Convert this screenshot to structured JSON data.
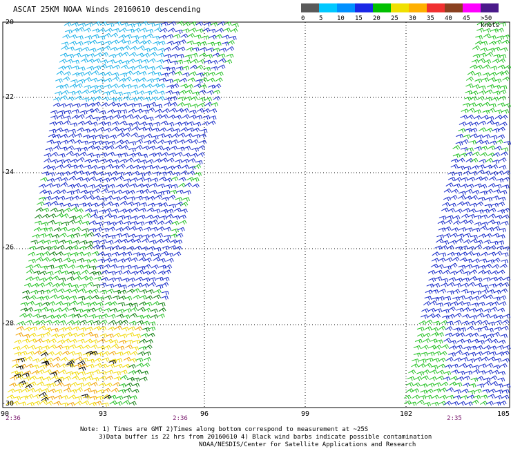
{
  "title": "ASCAT 25KM NOAA Winds 20160610 descending",
  "lat_labels": [
    "-20",
    "-22",
    "-24",
    "-26",
    "-28",
    "-30"
  ],
  "lon_labels": [
    "90",
    "93",
    "96",
    "99",
    "102",
    "105"
  ],
  "time_labels": [
    "2:36",
    "2:36",
    "2:35"
  ],
  "legend": {
    "labels": [
      "0",
      "5",
      "10",
      "15",
      "20",
      "25",
      "30",
      "35",
      "40",
      "45",
      ">50 knots"
    ],
    "colors": [
      "#5a5a5a",
      "#00c8ff",
      "#0090ff",
      "#1a28e6",
      "#00c000",
      "#f0e000",
      "#ffb000",
      "#f03030",
      "#8a4020",
      "#ff00ff",
      "#4a1a8a"
    ]
  },
  "notes": {
    "line1": "Note: 1) Times are GMT 2)Times along bottom correspond to measurement at ~25S",
    "line2": "3)Data buffer is 22 hrs from 20160610 4) Black wind barbs indicate possible contamination",
    "line3": "NOAA/NESDIS/Center for Satellite Applications and Research"
  },
  "colors": {
    "light_blue": "#1ab0e8",
    "blue": "#1428c8",
    "green": "#20c020",
    "dark_green": "#0a7a0a",
    "yellow": "#f0d800",
    "orange": "#f0a000",
    "black": "#000000",
    "time_purple": "#7a1a6e"
  }
}
